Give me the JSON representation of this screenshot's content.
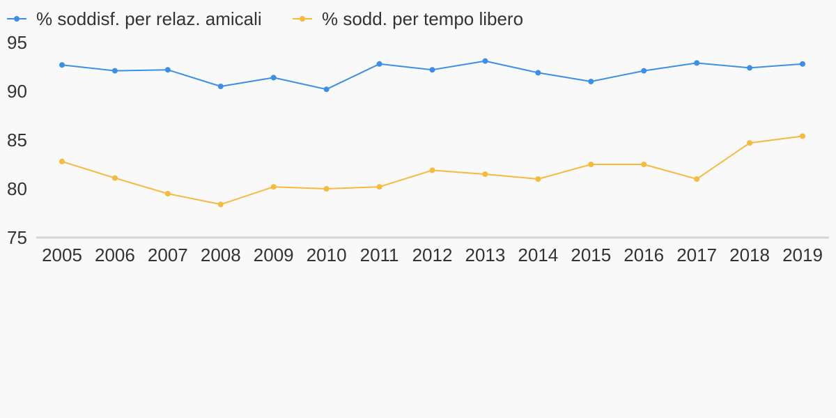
{
  "chart_data": {
    "type": "line",
    "title": "",
    "xlabel": "",
    "ylabel": "",
    "x": [
      "2005",
      "2006",
      "2007",
      "2008",
      "2009",
      "2010",
      "2011",
      "2012",
      "2013",
      "2014",
      "2015",
      "2016",
      "2017",
      "2018",
      "2019"
    ],
    "ylim": [
      75,
      95
    ],
    "yticks": [
      "75",
      "80",
      "85",
      "90",
      "95"
    ],
    "grid": false,
    "legend": "top-left",
    "series": [
      {
        "name": "% soddisf. per relaz. amicali",
        "color": "#3b8fe8",
        "values": [
          92.7,
          92.1,
          92.2,
          90.5,
          91.4,
          90.2,
          92.8,
          92.2,
          93.1,
          91.9,
          91.0,
          92.1,
          92.9,
          92.4,
          92.8
        ]
      },
      {
        "name": "% sodd. per tempo libero",
        "color": "#f8b93d",
        "values": [
          82.8,
          81.1,
          79.5,
          78.4,
          80.2,
          80.0,
          80.2,
          81.9,
          81.5,
          81.0,
          82.5,
          82.5,
          81.0,
          84.7,
          85.4
        ]
      }
    ]
  }
}
